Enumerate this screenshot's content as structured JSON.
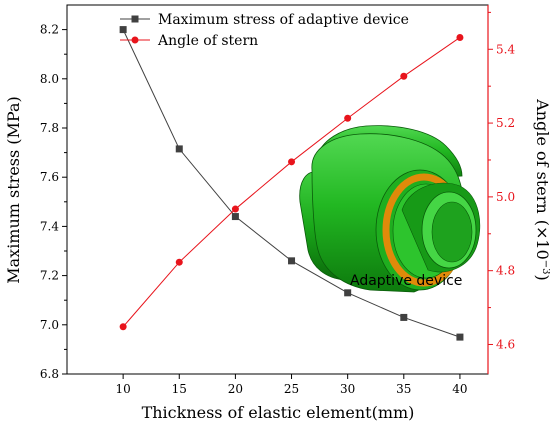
{
  "chart_data": {
    "type": "line",
    "x": [
      10,
      15,
      20,
      25,
      30,
      35,
      40
    ],
    "xlabel": "Thickness of elastic element(mm)",
    "xlim": [
      5,
      42.5
    ],
    "xticks": [
      10,
      15,
      20,
      25,
      30,
      35,
      40
    ],
    "left_axis": {
      "label": "Maximum stress (MPa)",
      "ylim": [
        6.8,
        8.3
      ],
      "ticks": [
        "6.8",
        "7.0",
        "7.2",
        "7.4",
        "7.6",
        "7.8",
        "8.0",
        "8.2"
      ],
      "color": "#000000"
    },
    "right_axis": {
      "label": "Angle of stern",
      "label_unit": "(×10",
      "label_exp": "−3",
      "label_close": ")",
      "ylim": [
        4.52,
        5.52
      ],
      "ticks": [
        "4.6",
        "4.8",
        "5.0",
        "5.2",
        "5.4"
      ],
      "color": "#e8141c"
    },
    "series": [
      {
        "name": "Maximum stress of adaptive device",
        "axis": "left",
        "marker": "square",
        "color": "#404040",
        "values": [
          8.2,
          7.715,
          7.44,
          7.26,
          7.13,
          7.03,
          6.95
        ]
      },
      {
        "name": "Angle of stern",
        "axis": "right",
        "marker": "circle",
        "color": "#e8141c",
        "values": [
          4.648,
          4.823,
          4.967,
          5.095,
          5.213,
          5.327,
          5.432
        ]
      }
    ],
    "legend_position": "top-left",
    "annotation": {
      "text": "Adaptive device",
      "image": "green cylindrical adaptive device with orange ring"
    },
    "grid": false
  }
}
